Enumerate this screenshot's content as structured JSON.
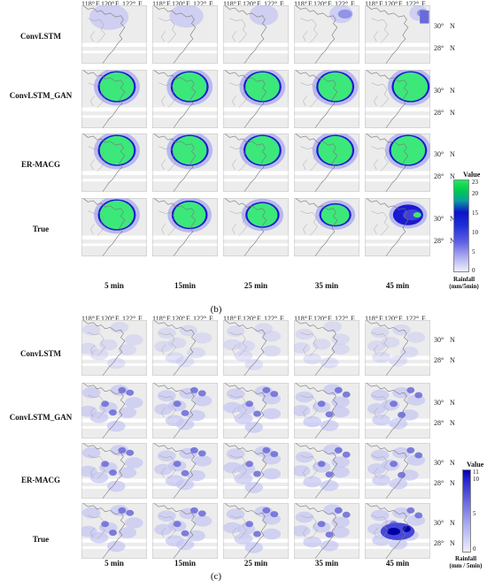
{
  "figure_b": {
    "caption": "(b)",
    "rows": [
      "ConvLSTM",
      "ConvLSTM_GAN",
      "ER-MACG",
      "True"
    ],
    "columns": [
      "5 min",
      "15min",
      "25 min",
      "35 min",
      "45 min"
    ],
    "lon_ticks": [
      "118°",
      "E",
      "120°",
      "E",
      "122°",
      "E"
    ],
    "lat_ticks": [
      "30°",
      "N",
      "28°",
      "N"
    ],
    "colorbar": {
      "title": "Value",
      "ticks": [
        "23",
        "20",
        "15",
        "10",
        "5",
        "0"
      ],
      "unit_line1": "Rainfall",
      "unit_line2": "(mm/5min)",
      "colors": {
        "high": "#00e64d",
        "mid": "#0a0ac8",
        "low": "#e6e6fa"
      }
    }
  },
  "figure_c": {
    "caption": "(c)",
    "rows": [
      "ConvLSTM",
      "ConvLSTM_GAN",
      "ER-MACG",
      "True"
    ],
    "columns": [
      "5 min",
      "15min",
      "25 min",
      "35 min",
      "45 min"
    ],
    "lon_ticks": [
      "118°",
      "E",
      "120°",
      "E",
      "122°",
      "E"
    ],
    "lat_ticks": [
      "30°",
      "N",
      "28°",
      "N"
    ],
    "colorbar": {
      "title": "Value",
      "ticks": [
        "11",
        "10",
        "5",
        "0"
      ],
      "unit_line1": "Rainfall",
      "unit_line2": "(mm / 5min)",
      "colors": {
        "high": "#0000b4",
        "low": "#eeeeff"
      }
    }
  }
}
